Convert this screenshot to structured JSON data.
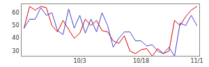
{
  "chart_data": {
    "type": "line",
    "categories": [
      null,
      null,
      null,
      null,
      null,
      null,
      null,
      null,
      null,
      null,
      "10/3",
      null,
      null,
      null,
      null,
      null,
      null,
      null,
      null,
      null,
      null,
      "10/18",
      null,
      null,
      null,
      null,
      null,
      null,
      null,
      null,
      null,
      "11/1"
    ],
    "series": [
      {
        "color": "#e00000",
        "values": [
          48,
          65,
          62,
          65,
          64,
          50,
          45,
          54,
          47,
          40,
          44,
          55,
          50,
          54,
          46,
          45,
          38,
          36,
          42,
          30,
          28,
          31,
          32,
          26,
          32,
          28,
          30,
          54,
          50,
          57,
          62,
          65
        ]
      },
      {
        "color": "#4444cc",
        "values": [
          48,
          55,
          55,
          64,
          58,
          60,
          46,
          43,
          63,
          48,
          58,
          44,
          55,
          45,
          60,
          50,
          33,
          40,
          45,
          45,
          38,
          38,
          34,
          35,
          30,
          28,
          33,
          26,
          52,
          50,
          58,
          50
        ]
      }
    ],
    "ylim": [
      26,
      67
    ],
    "yticks": [
      30,
      40,
      50,
      60
    ],
    "grid": false
  }
}
